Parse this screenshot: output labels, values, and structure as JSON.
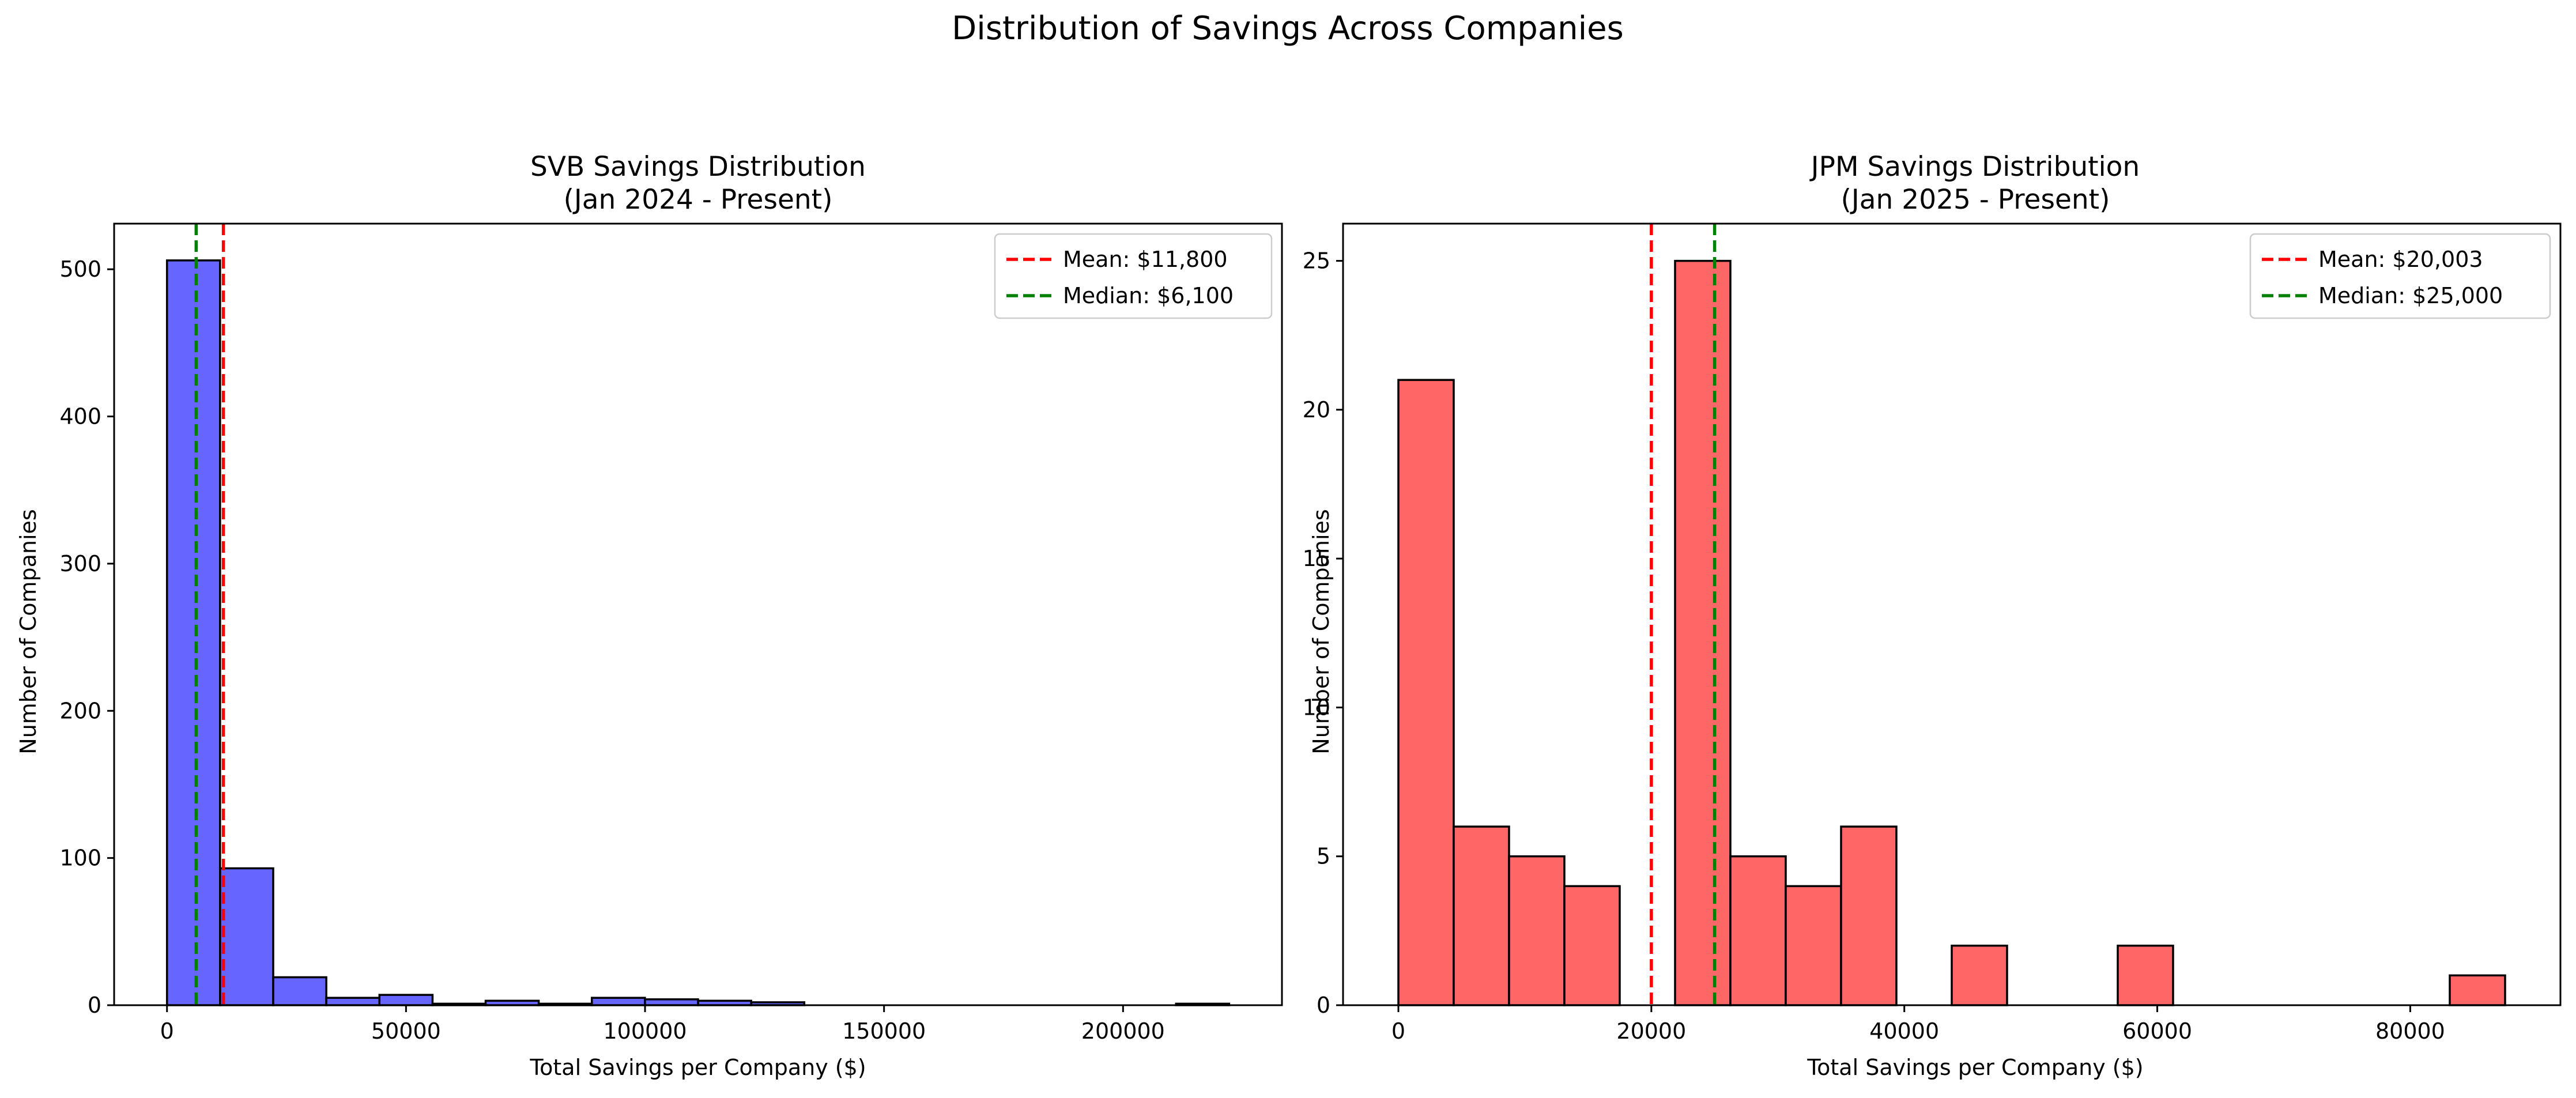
{
  "suptitle": "Distribution of Savings Across Companies",
  "chart_data": [
    {
      "type": "bar",
      "title": "SVB Savings Distribution",
      "subtitle": "(Jan 2024 - Present)",
      "xlabel": "Total Savings per Company ($)",
      "ylabel": "Number of Companies",
      "xlim": [
        -11060,
        233240
      ],
      "ylim": [
        0,
        531
      ],
      "xticks": [
        0,
        50000,
        100000,
        150000,
        200000
      ],
      "xtick_labels": [
        "0",
        "50000",
        "100000",
        "150000",
        "200000"
      ],
      "yticks": [
        0,
        100,
        200,
        300,
        400,
        500
      ],
      "ytick_labels": [
        "0",
        "100",
        "200",
        "300",
        "400",
        "500"
      ],
      "bin_edges": [
        0,
        11110,
        22220,
        33330,
        44440,
        55550,
        66660,
        77770,
        88880,
        99990,
        111100,
        122210,
        133320,
        144430,
        155540,
        166650,
        177760,
        188870,
        199980,
        211090,
        222200
      ],
      "counts": [
        506,
        93,
        19,
        5,
        7,
        1,
        3,
        1,
        5,
        4,
        3,
        2,
        0,
        0,
        0,
        0,
        0,
        0,
        0,
        1
      ],
      "bar_color": "#6666ff",
      "edge_color": "#000000",
      "grid": false,
      "reference_lines": [
        {
          "name": "Mean: $11,800",
          "value": 11800,
          "color": "#ff0000",
          "style": "dashed"
        },
        {
          "name": "Median: $6,100",
          "value": 6100,
          "color": "#008000",
          "style": "dashed"
        }
      ],
      "legend_position": "top-right"
    },
    {
      "type": "bar",
      "title": "JPM Savings Distribution",
      "subtitle": "(Jan 2025 - Present)",
      "xlabel": "Total Savings per Company ($)",
      "ylabel": "Number of Companies",
      "xlim": [
        -4375,
        91875
      ],
      "ylim": [
        0,
        26.25
      ],
      "xticks": [
        0,
        20000,
        40000,
        60000,
        80000
      ],
      "xtick_labels": [
        "0",
        "20000",
        "40000",
        "60000",
        "80000"
      ],
      "yticks": [
        0,
        5,
        10,
        15,
        20,
        25
      ],
      "ytick_labels": [
        "0",
        "5",
        "10",
        "15",
        "20",
        "25"
      ],
      "bin_edges": [
        0,
        4375,
        8750,
        13125,
        17500,
        21875,
        26250,
        30625,
        35000,
        39375,
        43750,
        48125,
        52500,
        56875,
        61250,
        65625,
        70000,
        74375,
        78750,
        83125,
        87500
      ],
      "counts": [
        21,
        6,
        5,
        4,
        0,
        25,
        5,
        4,
        6,
        0,
        2,
        0,
        0,
        2,
        0,
        0,
        0,
        0,
        0,
        1
      ],
      "bar_color": "#ff6666",
      "edge_color": "#000000",
      "grid": false,
      "reference_lines": [
        {
          "name": "Mean: $20,003",
          "value": 20003,
          "color": "#ff0000",
          "style": "dashed"
        },
        {
          "name": "Median: $25,000",
          "value": 25000,
          "color": "#008000",
          "style": "dashed"
        }
      ],
      "legend_position": "top-right"
    }
  ]
}
